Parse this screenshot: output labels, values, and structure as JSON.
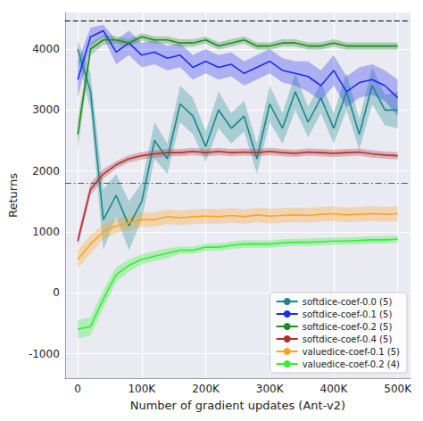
{
  "chart_data": {
    "type": "line",
    "x_label": "Number of gradient updates (Ant-v2)",
    "y_label": "Returns",
    "x": [
      0,
      20000,
      40000,
      60000,
      80000,
      100000,
      120000,
      140000,
      160000,
      180000,
      200000,
      220000,
      240000,
      260000,
      280000,
      300000,
      320000,
      340000,
      360000,
      380000,
      400000,
      420000,
      440000,
      460000,
      480000,
      500000
    ],
    "xlim": [
      -20000,
      520000
    ],
    "xticks": [
      0,
      {
        "value": 100000,
        "label": "100K"
      },
      {
        "value": 200000,
        "label": "200K"
      },
      {
        "value": 300000,
        "label": "300K"
      },
      {
        "value": 400000,
        "label": "400K"
      },
      {
        "value": 500000,
        "label": "500K"
      }
    ],
    "ylim": [
      -1400,
      4600
    ],
    "yticks": [
      -1000,
      0,
      1000,
      2000,
      3000,
      4000
    ],
    "grid": true,
    "legend": "lower right",
    "hlines": [
      {
        "value": 4460,
        "color": "#000000",
        "line_style": "dashed"
      },
      {
        "value": 1800,
        "color": "#555555",
        "line_style": "dashdot"
      }
    ],
    "series": [
      {
        "name": "softdice-coef-0.0 (5)",
        "color": "#17898c",
        "values": [
          4000,
          3300,
          1200,
          1600,
          1100,
          1500,
          2500,
          2200,
          3100,
          2900,
          2400,
          3000,
          2700,
          2900,
          2200,
          3100,
          2700,
          3300,
          2800,
          3200,
          2700,
          3300,
          2600,
          3400,
          3000,
          3000
        ],
        "error": [
          150,
          300,
          500,
          350,
          400,
          300,
          300,
          250,
          300,
          300,
          250,
          300,
          250,
          250,
          250,
          300,
          250,
          300,
          250,
          250,
          250,
          300,
          250,
          300,
          250,
          300
        ]
      },
      {
        "name": "softdice-coef-0.1 (5)",
        "color": "#1f2cf0",
        "values": [
          3500,
          4200,
          4300,
          3950,
          4100,
          3900,
          3950,
          3850,
          3900,
          3700,
          3800,
          3700,
          3750,
          3600,
          3700,
          3800,
          3650,
          3600,
          3550,
          3400,
          3650,
          3300,
          3450,
          3500,
          3400,
          3200
        ],
        "error": [
          300,
          150,
          100,
          200,
          200,
          200,
          200,
          200,
          200,
          200,
          200,
          200,
          200,
          200,
          200,
          200,
          200,
          200,
          250,
          250,
          250,
          250,
          250,
          250,
          250,
          300
        ]
      },
      {
        "name": "softdice-coef-0.2 (5)",
        "color": "#1e8c1e",
        "values": [
          2600,
          4000,
          4150,
          4150,
          4100,
          4200,
          4150,
          4150,
          4100,
          4100,
          4150,
          4050,
          4100,
          4150,
          4050,
          4050,
          4100,
          4100,
          4050,
          4050,
          4100,
          4050,
          4050,
          4050,
          4050,
          4050
        ],
        "error": [
          250,
          100,
          80,
          60,
          60,
          60,
          60,
          60,
          60,
          60,
          60,
          60,
          60,
          60,
          60,
          60,
          60,
          60,
          60,
          60,
          60,
          60,
          60,
          60,
          60,
          60
        ]
      },
      {
        "name": "softdice-coef-0.4 (5)",
        "color": "#b03030",
        "values": [
          850,
          1700,
          1950,
          2100,
          2200,
          2250,
          2280,
          2300,
          2300,
          2320,
          2300,
          2320,
          2300,
          2310,
          2300,
          2320,
          2300,
          2290,
          2310,
          2300,
          2290,
          2300,
          2310,
          2280,
          2260,
          2250
        ],
        "error": [
          100,
          100,
          80,
          60,
          60,
          60,
          60,
          60,
          60,
          60,
          60,
          60,
          60,
          60,
          60,
          60,
          60,
          60,
          60,
          60,
          60,
          60,
          60,
          60,
          60,
          60
        ]
      },
      {
        "name": "valuedice-coef-0.1 (5)",
        "color": "#ffa31a",
        "values": [
          550,
          800,
          1000,
          1100,
          1150,
          1200,
          1200,
          1250,
          1230,
          1250,
          1260,
          1250,
          1270,
          1250,
          1280,
          1260,
          1270,
          1280,
          1270,
          1290,
          1300,
          1280,
          1290,
          1300,
          1290,
          1300
        ],
        "error": [
          150,
          150,
          120,
          120,
          120,
          120,
          120,
          120,
          120,
          120,
          120,
          120,
          120,
          120,
          120,
          120,
          120,
          120,
          120,
          120,
          120,
          120,
          120,
          120,
          120,
          120
        ]
      },
      {
        "name": "valuedice-coef-0.2 (4)",
        "color": "#2ef22e",
        "values": [
          -600,
          -550,
          -100,
          300,
          450,
          550,
          600,
          650,
          700,
          700,
          750,
          750,
          780,
          800,
          800,
          800,
          820,
          830,
          830,
          840,
          850,
          850,
          860,
          870,
          870,
          880
        ],
        "error": [
          150,
          150,
          150,
          120,
          100,
          80,
          80,
          80,
          60,
          60,
          60,
          60,
          60,
          60,
          60,
          60,
          60,
          60,
          60,
          60,
          60,
          60,
          60,
          60,
          60,
          60
        ]
      }
    ]
  }
}
